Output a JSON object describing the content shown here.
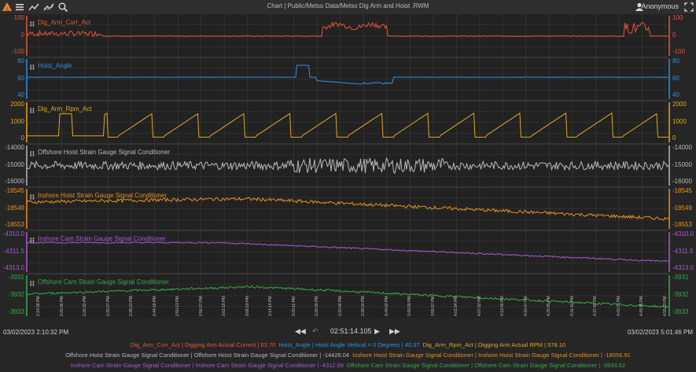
{
  "app": {
    "title": "Chart | Public/Metso Data/Metso Dig Arm and Hoist .RWM",
    "user": "Anonymous",
    "toolbar": [
      "menu-icon",
      "trend-icon",
      "trend-alt-icon",
      "zoom-icon"
    ]
  },
  "colors": {
    "bg": "#262626",
    "grid": "#3a3a3a",
    "red": "#e2563a",
    "blue": "#2f8fe0",
    "yellow": "#e0a820",
    "gray": "#b9b9b9",
    "orange": "#e8901c",
    "purple": "#a85bd0",
    "green": "#3aa84a"
  },
  "panes": [
    {
      "label": "Dig_Arm_Curr_Act",
      "color": "#e2563a",
      "ticks": [
        "100",
        "0",
        "-100"
      ]
    },
    {
      "label": "Hoist_Angle",
      "color": "#2f8fe0",
      "ticks": [
        "80",
        "60",
        "40"
      ]
    },
    {
      "label": "Dig_Arm_Rpm_Act",
      "color": "#e0a820",
      "ticks": [
        "2000",
        "1000",
        "0"
      ]
    },
    {
      "label": "Offshore Hoist Strain Gauge Signal Conditioner",
      "color": "#b9b9b9",
      "ticks": [
        "-14000",
        "-15000",
        "-16000"
      ]
    },
    {
      "label": "Inshore Hoist Strain Gauge Signal Conditioner",
      "color": "#e8901c",
      "ticks": [
        "-18545",
        "-18549",
        "-18553"
      ]
    },
    {
      "label": "Inshore Cam Strain Gauge Signal Conditioner",
      "color": "#a85bd0",
      "ticks": [
        "-4310.0",
        "-4311.5",
        "-4313.0"
      ]
    },
    {
      "label": "Offshore Cam Strain Gauge Signal Conditioner",
      "color": "#3aa84a",
      "ticks": [
        "-3931",
        "-3932",
        "-3933"
      ]
    }
  ],
  "x_ticks": [
    "2:14:38 PM",
    "2:20:36 PM",
    "2:26:32 PM",
    "2:32:27 PM",
    "2:38:23 PM",
    "2:44:18 PM",
    "2:50:13 PM",
    "2:56:27 PM",
    "3:02:18 PM",
    "3:08:19 PM",
    "3:14:14 PM",
    "3:20:11 PM",
    "3:26:09 PM",
    "3:32:06 PM",
    "3:38:04 PM",
    "3:44:02 PM",
    "3:49:59 PM",
    "3:55:57 PM",
    "4:01:54 PM",
    "4:07:52 PM",
    "4:13:49 PM",
    "4:19:47 PM",
    "4:25:45 PM",
    "4:31:42 PM",
    "4:37:40 PM",
    "4:43:37 PM",
    "4:49:35 PM",
    "4:55:33 PM"
  ],
  "bottom": {
    "start": "03/02/2023  2:10:32 PM",
    "end": "03/02/2023  5:01:46 PM",
    "cursor_time": "02:51:14.105",
    "legend": [
      [
        {
          "text": "Dig_Arm_Curr_Act | Digging Arm Actual Current | 63.70",
          "color": "#e2563a"
        },
        {
          "text": "Hoist_Angle | Hoist Angle Vertical = 0 Degrees | 40.37",
          "color": "#2f8fe0"
        },
        {
          "text": "Dig_Arm_Rpm_Act | Digging Arm Actual RPM | 578.10",
          "color": "#e0a820"
        }
      ],
      [
        {
          "text": "Offshore Hoist Strain Gauge Signal Conditioner | Offshore Hoist Strain Gauge Signal Conditioner | -14426.04",
          "color": "#b9b9b9"
        },
        {
          "text": "Inshore Hoist Strain Gauge Signal Conditioner | Inshore Hoist Strain Gauge Signal Conditioner | -18556.91",
          "color": "#e8901c"
        }
      ],
      [
        {
          "text": "Inshore Cam Strain Gauge Signal Conditioner | Inshore Cam Strain Gauge Signal Conditioner | -4312.99",
          "color": "#a85bd0"
        },
        {
          "text": "Offshore Cam Strain Gauge Signal Conditioner | Offshore Cam Strain Gauge Signal Conditioner | -3933.62",
          "color": "#3aa84a"
        }
      ]
    ]
  }
}
